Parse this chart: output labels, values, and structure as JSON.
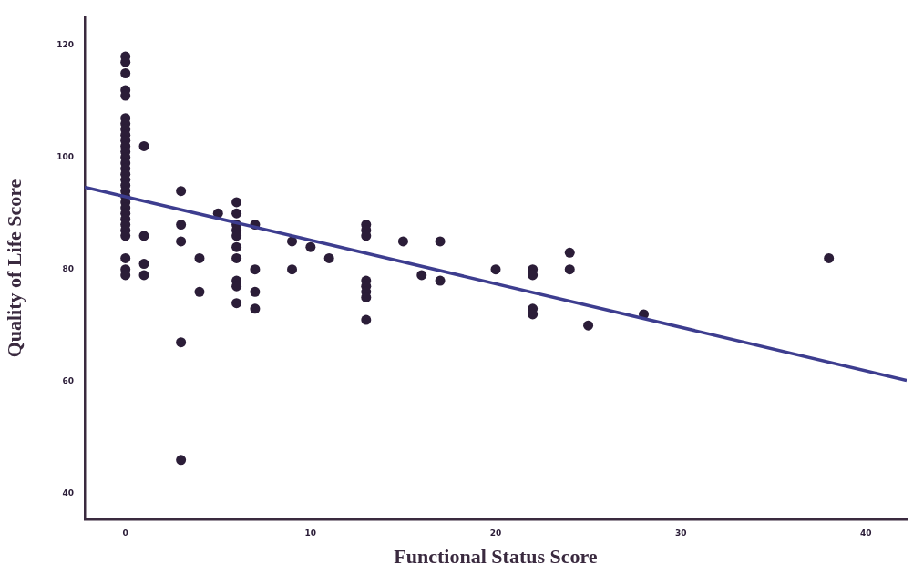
{
  "chart_data": {
    "type": "scatter",
    "xlabel": "Functional Status Score",
    "ylabel": "Quality of Life Score",
    "xlim": [
      -2.2,
      42.2
    ],
    "xticks": [
      0,
      10,
      20,
      30,
      40
    ],
    "ylim": [
      35.4,
      125
    ],
    "yticks": [
      40,
      60,
      80,
      100,
      120
    ],
    "grid": false,
    "legend": false,
    "marker": "circle",
    "series": [
      {
        "color": "#2b1d38",
        "x": [
          0,
          0,
          0,
          0,
          0,
          0,
          0,
          0,
          0,
          0,
          0,
          0,
          0,
          0,
          0,
          0,
          0,
          0,
          0,
          0,
          0,
          0,
          0,
          0,
          0,
          0,
          0,
          0,
          0,
          0,
          1,
          1,
          1,
          1,
          3,
          3,
          3,
          3,
          3,
          4,
          4,
          5,
          6,
          6,
          6,
          6,
          6,
          6,
          6,
          6,
          6,
          6,
          7,
          7,
          7,
          7,
          9,
          9,
          10,
          11,
          13,
          13,
          13,
          13,
          13,
          13,
          13,
          13,
          15,
          16,
          17,
          17,
          20,
          22,
          22,
          22,
          22,
          24,
          24,
          25,
          28,
          38
        ],
        "values": [
          118,
          117,
          115,
          112,
          111,
          107,
          106,
          105,
          104,
          103,
          102,
          101,
          100,
          99,
          98,
          97,
          96,
          95,
          94,
          93,
          92,
          91,
          90,
          89,
          88,
          87,
          86,
          82,
          80,
          79,
          102,
          86,
          81,
          79,
          94,
          88,
          85,
          67,
          46,
          82,
          76,
          90,
          92,
          90,
          88,
          87,
          86,
          84,
          82,
          78,
          77,
          74,
          88,
          80,
          76,
          73,
          85,
          80,
          84,
          82,
          88,
          87,
          86,
          78,
          77,
          76,
          75,
          71,
          85,
          79,
          85,
          78,
          80,
          80,
          79,
          73,
          72,
          83,
          80,
          70,
          72,
          82
        ]
      },
      {
        "type": "line",
        "color": "#3d3d8f",
        "x": [
          -2.2,
          42.2
        ],
        "values": [
          94.7,
          60.2
        ],
        "marker": "none",
        "line_style": "solid"
      }
    ]
  }
}
